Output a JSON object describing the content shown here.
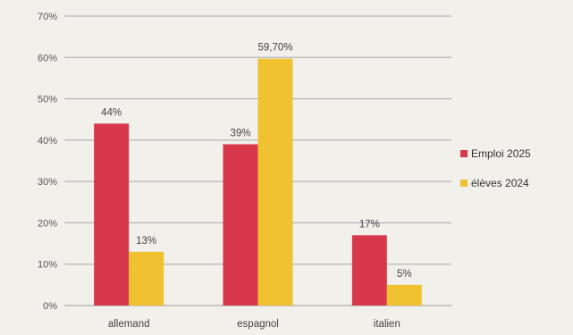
{
  "chart_data": {
    "type": "bar",
    "categories": [
      "allemand",
      "espagnol",
      "italien"
    ],
    "series": [
      {
        "name": "Emploi 2025",
        "values": [
          44,
          39,
          17
        ],
        "labels": [
          "44%",
          "39%",
          "17%"
        ],
        "color": "#d8384c"
      },
      {
        "name": "élèves 2024",
        "values": [
          13,
          59.7,
          5
        ],
        "labels": [
          "13%",
          "59,70%",
          "5%"
        ],
        "color": "#f0c232"
      }
    ],
    "yticks": [
      "0%",
      "10%",
      "20%",
      "30%",
      "40%",
      "50%",
      "60%",
      "70%"
    ],
    "ylim": [
      0,
      70
    ],
    "grid": true,
    "legend_position": "right"
  }
}
